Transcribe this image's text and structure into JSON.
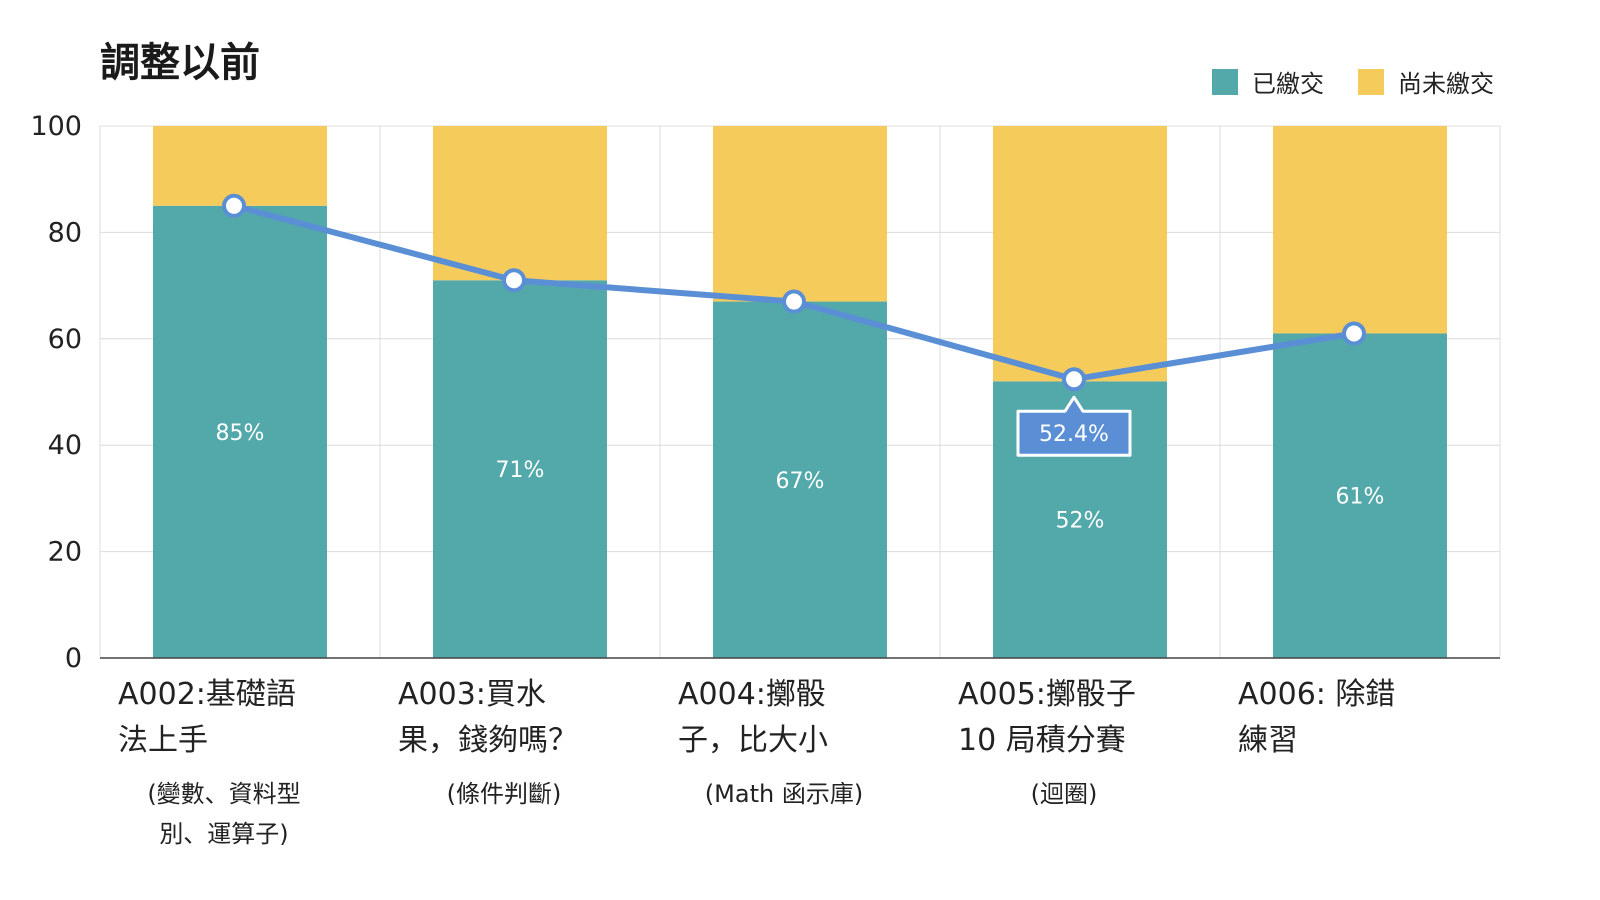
{
  "chart_data": {
    "type": "bar",
    "title": "調整以前",
    "stacked": true,
    "ylim": [
      0,
      100
    ],
    "yticks": [
      0,
      20,
      40,
      60,
      80,
      100
    ],
    "grid": true,
    "legend_position": "top-right",
    "categories": [
      {
        "main": [
          "A002:基礎語",
          "法上手"
        ],
        "sub": [
          "(變數、資料型",
          "別、運算子)"
        ]
      },
      {
        "main": [
          "A003:買水",
          "果，錢夠嗎？"
        ],
        "sub": [
          "(條件判斷)"
        ]
      },
      {
        "main": [
          "A004:擲骰",
          "子，比大小"
        ],
        "sub": [
          "(Math 函示庫)"
        ]
      },
      {
        "main": [
          "A005:擲骰子",
          "10 局積分賽"
        ],
        "sub": [
          "(迴圈)"
        ]
      },
      {
        "main": [
          "A006: 除錯",
          "練習"
        ],
        "sub": []
      }
    ],
    "series": [
      {
        "name": "已繳交",
        "type": "bar",
        "color": "#53a8aa",
        "values": [
          85,
          71,
          67,
          52,
          61
        ],
        "labels": [
          "85%",
          "71%",
          "67%",
          "52%",
          "61%"
        ]
      },
      {
        "name": "尚未繳交",
        "type": "bar",
        "color": "#f5cb5c",
        "values": [
          15,
          29,
          33,
          48,
          39
        ]
      },
      {
        "type": "line",
        "color": "#5a8fd6",
        "values": [
          85,
          71,
          67,
          52.4,
          61
        ]
      }
    ],
    "annotation": {
      "category_index": 3,
      "value": 52.4,
      "text": "52.4%"
    }
  }
}
